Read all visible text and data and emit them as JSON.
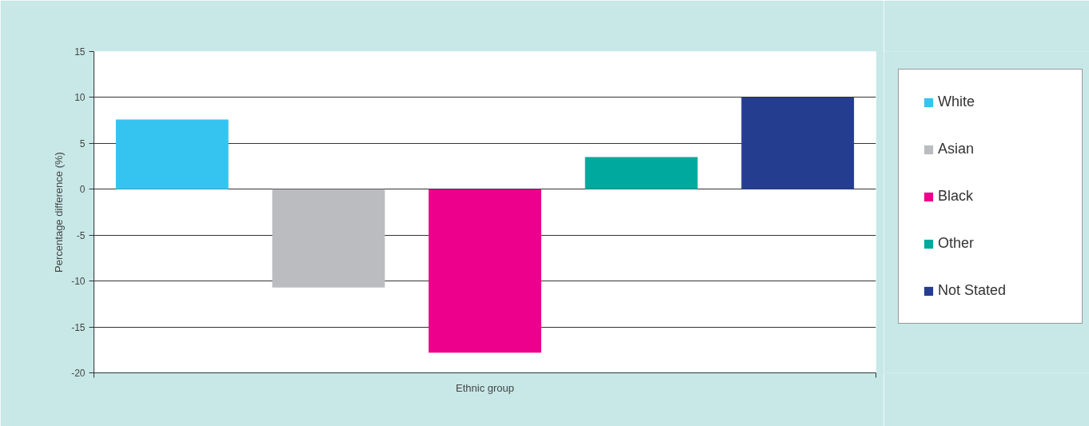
{
  "chart_data": {
    "type": "bar",
    "xlabel": "Ethnic group",
    "ylabel": "Percentage difference (%)",
    "categories": [
      null,
      null,
      null,
      null,
      null
    ],
    "series": [
      {
        "name": "White",
        "color": "#35c4f0",
        "values": [
          7.6,
          null,
          null,
          null,
          null
        ]
      },
      {
        "name": "Asian",
        "color": "#bbbcc0",
        "values": [
          null,
          -10.7,
          null,
          null,
          null
        ]
      },
      {
        "name": "Black",
        "color": "#ec008c",
        "values": [
          null,
          null,
          -17.8,
          null,
          null
        ]
      },
      {
        "name": "Other",
        "color": "#00a99d",
        "values": [
          null,
          null,
          null,
          3.5,
          null
        ]
      },
      {
        "name": "Not Stated",
        "color": "#253d8f",
        "values": [
          null,
          null,
          null,
          null,
          10
        ]
      }
    ],
    "ylim": [
      -20,
      15
    ],
    "yticks": [
      -20,
      -15,
      -10,
      -5,
      0,
      5,
      10,
      15
    ],
    "grid": "y",
    "legend": "right"
  }
}
